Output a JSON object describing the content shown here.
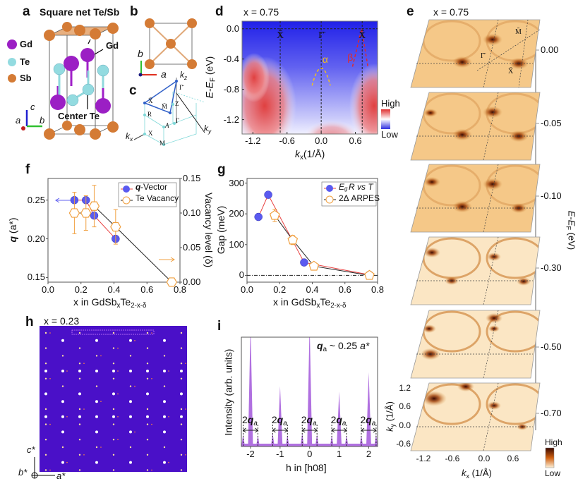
{
  "panel_a": {
    "label": "a",
    "square_net_label": "Square net Te/Sb",
    "gd_label": "Gd",
    "center_label": "Center Te",
    "legend": [
      {
        "name": "Gd",
        "color": "#9b1fc4"
      },
      {
        "name": "Te",
        "color": "#93dbe0"
      },
      {
        "name": "Sb",
        "color": "#d47b35"
      }
    ],
    "axes": {
      "c": "c",
      "a": "a",
      "b": "b"
    }
  },
  "panel_b": {
    "label": "b",
    "axis_b": "b",
    "axis_a": "a"
  },
  "panel_c": {
    "label": "c",
    "kz": {
      "k": "k",
      "sub": "z"
    },
    "kx": {
      "k": "k",
      "sub": "x"
    },
    "ky": {
      "k": "k",
      "sub": "y"
    },
    "points": {
      "gamma_bar": "Γ̄",
      "x_bar": "X̄",
      "m_bar": "M̄",
      "z": "Z",
      "r": "R",
      "a": "A",
      "gamma": "Γ",
      "x": "X",
      "m": "M"
    }
  },
  "panel_d": {
    "label": "d",
    "title": "x = 0.75",
    "ylabel": {
      "e": "E",
      "dash": "-",
      "ef": "E",
      "sub": "F",
      "unit": " (eV)"
    },
    "xlabel": {
      "k": "k",
      "sub": "x",
      "unit": "(1/Å)"
    },
    "yticks": [
      {
        "v": 0.0,
        "t": "0.0"
      },
      {
        "v": -0.4,
        "t": "-0.4"
      },
      {
        "v": -0.8,
        "t": "-0.8"
      },
      {
        "v": -1.2,
        "t": "-1.2"
      }
    ],
    "xticks": [
      {
        "v": -1.2,
        "t": "-1.2"
      },
      {
        "v": -0.6,
        "t": "-0.6"
      },
      {
        "v": 0.0,
        "t": "0.0"
      },
      {
        "v": 0.6,
        "t": "0.6"
      }
    ],
    "xlim": [
      -1.39,
      0.99
    ],
    "ylim": [
      -1.39,
      0.1
    ],
    "markers": [
      {
        "k": -0.72,
        "t": "X̄"
      },
      {
        "k": 0.0,
        "t": "Γ̄"
      },
      {
        "k": 0.72,
        "t": "X̄"
      }
    ],
    "bands": [
      {
        "name": "α",
        "color": "#f0c020"
      },
      {
        "name": "β",
        "color": "#e02a2a"
      }
    ],
    "colorbar": {
      "high": "High",
      "low": "Low",
      "colors": [
        "#e03030",
        "#ffffff",
        "#3030e0"
      ]
    }
  },
  "panel_e": {
    "label": "e",
    "title": "x = 0.75",
    "energies": [
      "0.00",
      "-0.05",
      "-0.10",
      "-0.30",
      "-0.50",
      "-0.70"
    ],
    "ylabel": {
      "e": "E",
      "dash": "-",
      "ef": "E",
      "sub": "F",
      "unit": " (eV)"
    },
    "points": {
      "m_bar": "M̄",
      "gamma_bar": "Γ̄",
      "x_bar": "X̄"
    },
    "kx_ticks": [
      "-1.2",
      "-0.6",
      "0.0",
      "0.6"
    ],
    "ky_ticks": [
      "1.2",
      "0.6",
      "0.0",
      "-0.6"
    ],
    "xlabel": {
      "k": "k",
      "sub": "x",
      "unit": " (1/Å)"
    },
    "ky_label": {
      "k": "k",
      "sub": "y",
      "unit": " (1/Å)"
    },
    "colorbar": {
      "high": "High",
      "low": "Low",
      "colors": [
        "#3a0800",
        "#d06010",
        "#fdf0d8"
      ]
    }
  },
  "chart_data": [
    {
      "panel": "f",
      "type": "scatter",
      "xlabel": {
        "pre": "x in GdSb",
        "sub1": "x",
        "mid": "Te",
        "sub2": "2-x-δ"
      },
      "ylabel_left": {
        "q": "q",
        "rest": " (a*)"
      },
      "ylabel_right": "Vacancy level (δ)",
      "xlim": [
        0,
        0.8
      ],
      "ylim_left": [
        0.144,
        0.278
      ],
      "ylim_right": [
        0,
        0.15
      ],
      "xticks": [
        "0.0",
        "0.2",
        "0.4",
        "0.6",
        "0.8"
      ],
      "yticks_left": [
        "0.15",
        "0.20",
        "0.25"
      ],
      "yticks_right": [
        "0.00",
        "0.05",
        "0.10",
        "0.15"
      ],
      "legend": "top-right",
      "series": [
        {
          "name": "q-Vector",
          "name_bold": "q",
          "name_rest": "-Vector",
          "axis": "left",
          "color": "#5a5af0",
          "line": "#e84040",
          "x": [
            0.16,
            0.23,
            0.28,
            0.41
          ],
          "y": [
            0.25,
            0.25,
            0.23,
            0.2
          ]
        },
        {
          "name": "Te Vacancy",
          "axis": "right",
          "color": "#f0a040",
          "line": "#222222",
          "x": [
            0.16,
            0.23,
            0.28,
            0.41,
            0.75
          ],
          "y": [
            0.1,
            0.1,
            0.11,
            0.08,
            0.0
          ],
          "err": [
            0.03,
            0.025,
            0.03,
            0.025,
            0.005
          ]
        }
      ]
    },
    {
      "panel": "g",
      "type": "scatter",
      "xlabel": {
        "pre": "x in GdSb",
        "sub1": "x",
        "mid": "Te",
        "sub2": "2-x-δ"
      },
      "ylabel": "Gap (meV)",
      "xlim": [
        0,
        0.8
      ],
      "ylim": [
        -22,
        315
      ],
      "xticks": [
        "0.0",
        "0.2",
        "0.4",
        "0.6",
        "0.8"
      ],
      "yticks": [
        "0",
        "100",
        "200",
        "300"
      ],
      "legend": "top-right",
      "series": [
        {
          "name": "Eg R vs T",
          "name_e": "E",
          "name_sub": "g",
          "name_rest": " R vs T",
          "color": "#5a5af0",
          "line": "#e84040",
          "x": [
            0.07,
            0.13,
            0.35,
            0.75
          ],
          "y": [
            190,
            262,
            42,
            2
          ]
        },
        {
          "name": "2Δ ARPES",
          "color": "#f0a040",
          "line": "#222222",
          "x": [
            0.17,
            0.28,
            0.41,
            0.75
          ],
          "y": [
            195,
            115,
            30,
            0
          ],
          "err": [
            20,
            15,
            5,
            3
          ]
        }
      ]
    },
    {
      "panel": "i",
      "type": "line",
      "annotation": {
        "q": "q",
        "sub": "a",
        "rest": " ~ 0.25 ",
        "astar": "a*"
      },
      "xlabel": "h in [h08]",
      "ylabel": "Intensity (arb. units)",
      "xlim": [
        -2.31,
        2.3
      ],
      "ylim": [
        0,
        1
      ],
      "xticks": [
        "-2",
        "-1",
        "0",
        "1",
        "2"
      ],
      "color": "#b070e0",
      "peaks": [
        {
          "h": -2.25,
          "i": 0.09
        },
        {
          "h": -2,
          "i": 1.0
        },
        {
          "h": -1.75,
          "i": 0.08
        },
        {
          "h": -1.25,
          "i": 0.1
        },
        {
          "h": -1,
          "i": 0.54
        },
        {
          "h": -0.75,
          "i": 0.08
        },
        {
          "h": -0.25,
          "i": 0.1
        },
        {
          "h": 0,
          "i": 1.0
        },
        {
          "h": 0.25,
          "i": 0.09
        },
        {
          "h": 0.75,
          "i": 0.08
        },
        {
          "h": 1,
          "i": 0.49
        },
        {
          "h": 1.25,
          "i": 0.08
        },
        {
          "h": 1.75,
          "i": 0.08
        },
        {
          "h": 2,
          "i": 0.67
        },
        {
          "h": 2.25,
          "i": 0.09
        }
      ],
      "spans": [
        {
          "from": -2.25,
          "to": -1.75
        },
        {
          "from": -1.25,
          "to": -0.75
        },
        {
          "from": -0.25,
          "to": 0.25
        },
        {
          "from": 0.75,
          "to": 1.25
        },
        {
          "from": 1.75,
          "to": 2.25
        }
      ],
      "span_label": {
        "two": "2",
        "q": "q",
        "sub": "a"
      }
    }
  ],
  "panel_f": {
    "label": "f"
  },
  "panel_g": {
    "label": "g"
  },
  "panel_h": {
    "label": "h",
    "title": "x = 0.23",
    "axis_c": "c*",
    "axis_b": "b*",
    "axis_a": "a*",
    "background": "#4a10c8"
  },
  "panel_i": {
    "label": "i"
  }
}
